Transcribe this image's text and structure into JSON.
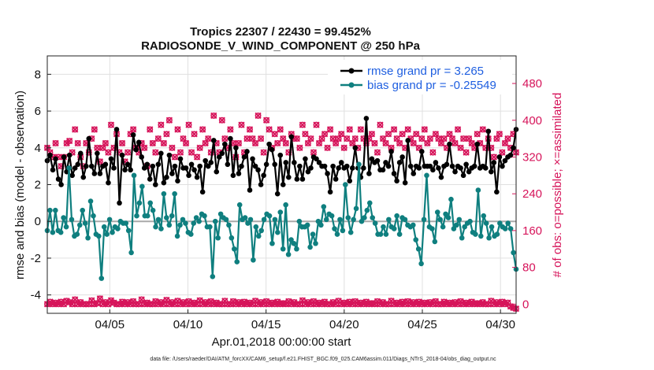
{
  "chart_data": {
    "type": "line",
    "title_line1": "Tropics 22307 / 22430 = 99.452%",
    "title_line2": "RADIOSONDE_V_WIND_COMPONENT @ 250 hPa",
    "xlabel": "Apr.01,2018 00:00:00 start",
    "ylabel_left": "rmse and bias (model - observation)",
    "ylabel_right": "# of obs: o=possible; ×=assimilated",
    "footer": "data file: /Users/raeder/DAI/ATM_forcXX/CAM6_setup/f.e21.FHIST_BGC.f09_025.CAM6assim.011/Diags_NTrS_2018-04/obs_diag_output.nc",
    "x_tick_labels": [
      "04/05",
      "04/10",
      "04/15",
      "04/20",
      "04/25",
      "04/30"
    ],
    "x_tick_days": [
      5,
      10,
      15,
      20,
      25,
      30
    ],
    "x_range_days": [
      1,
      31
    ],
    "ylim_left": [
      -5,
      9
    ],
    "left_ticks": [
      -4,
      -2,
      0,
      2,
      4,
      6,
      8
    ],
    "ylim_right": [
      -20,
      540
    ],
    "right_ticks": [
      0,
      80,
      160,
      240,
      320,
      400,
      480
    ],
    "grid": true,
    "legend_position": "top-right",
    "colors": {
      "rmse": "#000000",
      "bias": "#0f7f7f",
      "obs": "#d6145a",
      "zero_line": "#aaaaaa",
      "grid": "#e0e0e0",
      "legend_text": "#1f5fe0"
    },
    "series": [
      {
        "name": "rmse grand pr = 3.265",
        "key": "rmse",
        "values": [
          3.3,
          3.6,
          2.8,
          3.4,
          2.3,
          2.0,
          3.5,
          2.7,
          3.6,
          2.5,
          2.9,
          3.1,
          3.7,
          2.4,
          3.0,
          4.5,
          3.0,
          2.6,
          3.7,
          2.6,
          3.0,
          3.1,
          2.1,
          3.4,
          2.9,
          5.0,
          1.0,
          3.6,
          2.8,
          3.1,
          2.8,
          4.7,
          3.9,
          4.3,
          3.5,
          2.9,
          3.1,
          2.3,
          3.0,
          2.0,
          3.1,
          3.7,
          2.1,
          2.4,
          3.6,
          2.6,
          3.0,
          2.2,
          3.4,
          2.9,
          2.9,
          2.5,
          3.1,
          2.8,
          2.4,
          3.0,
          1.6,
          3.3,
          3.0,
          3.2,
          4.4,
          2.7,
          3.5,
          3.7,
          4.2,
          3.1,
          4.5,
          2.5,
          4.0,
          2.6,
          3.0,
          3.5,
          3.8,
          1.7,
          3.4,
          3.0,
          2.8,
          2.0,
          2.5,
          3.1,
          4.2,
          3.9,
          3.1,
          1.5,
          3.6,
          2.0,
          3.2,
          2.4,
          4.6,
          3.2,
          2.3,
          3.0,
          2.3,
          3.4,
          2.7,
          2.9,
          3.5,
          3.4,
          3.2,
          3.0,
          3.0,
          2.6,
          1.6,
          3.0,
          2.3,
          2.9,
          3.2,
          2.9,
          3.0,
          2.2,
          2.9,
          4.0,
          2.9,
          2.4,
          2.9,
          5.6,
          2.6,
          3.4,
          3.2,
          3.3,
          2.8,
          2.8,
          3.2,
          3.0,
          3.8,
          2.6,
          2.2,
          3.2,
          3.5,
          2.1,
          4.4,
          3.0,
          2.6,
          3.0,
          2.9,
          3.8,
          3.0,
          3.0,
          3.0,
          2.8,
          3.2,
          2.9,
          2.4,
          3.0,
          3.1,
          4.2,
          3.0,
          2.7,
          3.0,
          2.9,
          2.5,
          3.1,
          2.7,
          2.9,
          3.0,
          4.2,
          2.9,
          3.0,
          2.9,
          4.9,
          2.7,
          3.2,
          1.6,
          3.5,
          3.0,
          3.3,
          3.5,
          3.6,
          4.0,
          5.0
        ]
      },
      {
        "name": "bias grand pr = -0.25549",
        "key": "bias",
        "values": [
          -0.5,
          0.6,
          -0.6,
          0.6,
          -0.5,
          -0.6,
          0.2,
          -0.3,
          2.9,
          0.1,
          -0.8,
          -0.7,
          -0.2,
          0.6,
          -0.1,
          -0.9,
          1.1,
          0.3,
          -0.7,
          -0.8,
          -3.1,
          -0.3,
          -0.7,
          0.1,
          -0.6,
          -0.3,
          -0.4,
          0.0,
          -0.1,
          -0.1,
          -0.5,
          -1.7,
          2.5,
          0.3,
          1.0,
          1.9,
          0.3,
          0.3,
          1.0,
          0.6,
          -0.3,
          0.1,
          -0.4,
          1.5,
          0.2,
          -0.2,
          0.3,
          1.5,
          -0.8,
          -0.2,
          0.1,
          -0.1,
          -0.6,
          -0.7,
          -0.1,
          0.2,
          0.0,
          0.4,
          0.3,
          -0.3,
          -0.3,
          -3.0,
          0.0,
          -0.9,
          0.4,
          0.2,
          0.1,
          -0.2,
          -0.9,
          -1.5,
          -2.2,
          0.9,
          0.1,
          0.2,
          -0.1,
          0.1,
          -2.1,
          -0.3,
          -0.8,
          -0.5,
          0.1,
          0.4,
          0.3,
          -1.2,
          0.1,
          -0.6,
          0.5,
          -1.5,
          0.9,
          -1.8,
          -1.0,
          -1.2,
          -1.5,
          0.0,
          -0.3,
          -0.3,
          -0.2,
          -1.4,
          -0.7,
          -1.2,
          0.0,
          -0.2,
          0.8,
          0.1,
          0.4,
          0.3,
          -0.4,
          -0.7,
          0.1,
          -0.5,
          2.0,
          0.2,
          -0.6,
          0.1,
          0.7,
          3.1,
          0.0,
          0.2,
          0.6,
          1.0,
          0.2,
          -0.1,
          -0.7,
          -0.7,
          -0.3,
          -0.7,
          0.1,
          -0.3,
          -0.4,
          0.3,
          -0.7,
          0.2,
          0.1,
          -0.2,
          -0.3,
          -0.2,
          -1.0,
          -1.5,
          -2.3,
          0.1,
          2.5,
          -0.3,
          -0.4,
          -1.1,
          0.5,
          0.1,
          -0.3,
          0.4,
          0.2,
          1.2,
          -0.4,
          -0.2,
          0.1,
          -0.9,
          -0.3,
          -0.1,
          0.0,
          -0.6,
          -0.7,
          1.7,
          -0.8,
          0.3,
          -0.1,
          -0.9,
          -0.3,
          -0.8,
          -0.7,
          -0.1,
          -0.3,
          -0.4,
          -0.1,
          -0.4,
          -1.7,
          -2.6
        ]
      },
      {
        "name": "obs possible",
        "key": "obs_possible",
        "values": [
          340,
          330,
          320,
          350,
          320,
          300,
          320,
          350,
          355,
          330,
          380,
          350,
          320,
          300,
          350,
          330,
          360,
          380,
          340,
          310,
          340,
          350,
          330,
          390,
          340,
          370,
          330,
          350,
          310,
          330,
          370,
          380,
          340,
          330,
          350,
          340,
          300,
          380,
          350,
          330,
          360,
          390,
          350,
          370,
          400,
          340,
          320,
          380,
          330,
          360,
          350,
          390,
          330,
          370,
          320,
          340,
          380,
          350,
          360,
          330,
          410,
          350,
          330,
          400,
          360,
          340,
          380,
          350,
          320,
          350,
          390,
          330,
          360,
          380,
          360,
          350,
          410,
          360,
          330,
          400,
          380,
          340,
          370,
          350,
          380,
          360,
          350,
          330,
          370,
          360,
          360,
          340,
          390,
          370,
          350,
          360,
          330,
          390,
          350,
          360,
          370,
          340,
          380,
          360,
          350,
          360,
          370,
          340,
          360,
          380,
          350,
          360,
          340,
          380,
          360,
          350,
          360,
          370,
          350,
          330,
          390,
          360,
          350,
          370,
          340,
          380,
          360,
          350,
          370,
          340,
          380,
          360,
          350,
          370,
          340,
          360,
          380,
          350,
          360,
          330,
          370,
          360,
          350,
          360,
          340,
          370,
          360,
          350,
          380,
          340,
          360,
          330,
          360,
          350,
          340,
          370,
          350,
          380,
          340,
          360,
          340,
          320,
          360,
          370,
          330,
          350,
          360,
          340,
          370,
          330
        ]
      },
      {
        "name": "obs assimilated",
        "key": "obs_assimilated",
        "values": [
          0,
          5,
          0,
          3,
          0,
          5,
          0,
          7,
          4,
          0,
          10,
          0,
          4,
          0,
          0,
          0,
          8,
          0,
          2,
          12,
          0,
          4,
          0,
          8,
          3,
          0,
          0,
          5,
          0,
          4,
          0,
          6,
          0,
          0,
          10,
          0,
          3,
          0,
          0,
          6,
          0,
          4,
          0,
          9,
          0,
          4,
          0,
          7,
          0,
          4,
          0,
          6,
          0,
          3,
          0,
          8,
          0,
          4,
          0,
          6,
          0,
          3,
          0,
          0,
          7,
          0,
          0,
          6,
          0,
          4,
          0,
          5,
          0,
          3,
          0,
          7,
          0,
          4,
          0,
          6,
          0,
          3,
          0,
          5,
          0,
          2,
          0,
          6,
          0,
          4,
          0,
          0,
          8,
          0,
          4,
          0,
          6,
          0,
          3,
          0,
          5,
          0,
          0,
          4,
          0,
          7,
          0,
          3,
          0,
          5,
          0,
          6,
          0,
          3,
          0,
          5,
          0,
          2,
          0,
          6,
          0,
          4,
          0,
          0,
          7,
          0,
          3,
          0,
          5,
          0,
          6,
          0,
          4,
          0,
          5,
          0,
          3,
          0,
          4,
          0,
          6,
          0,
          0,
          5,
          0,
          3,
          0,
          4,
          0,
          6,
          0,
          3,
          0,
          5,
          0,
          2,
          0,
          4,
          0,
          0,
          7,
          0,
          4,
          0,
          5,
          0,
          3,
          -5,
          -8,
          -10
        ]
      }
    ]
  }
}
